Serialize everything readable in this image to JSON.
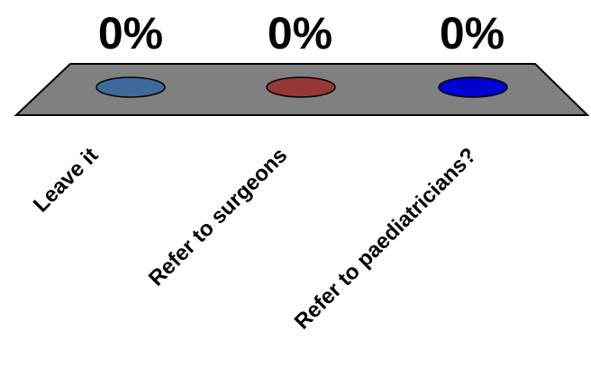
{
  "chart_data": {
    "type": "bar",
    "categories": [
      "Leave it",
      "Refer to surgeons",
      "Refer to paediatricians?"
    ],
    "values": [
      0,
      0,
      0
    ],
    "value_labels": [
      "0%",
      "0%",
      "0%"
    ],
    "series_colors": [
      "#3d6a9a",
      "#963838",
      "#0000d0"
    ],
    "floor_color": "#808080",
    "ylim": [
      0,
      100
    ]
  }
}
